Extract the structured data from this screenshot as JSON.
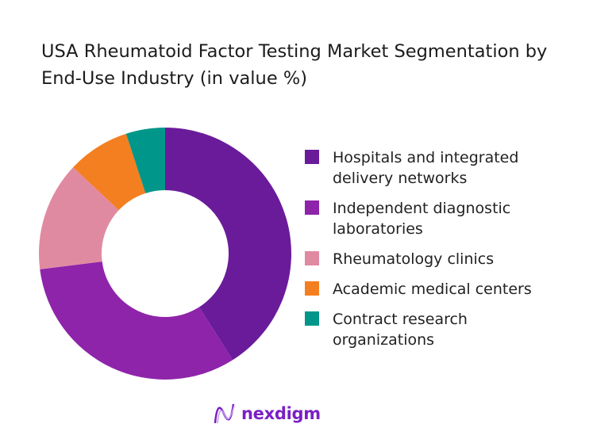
{
  "chart_data": {
    "type": "pie",
    "variant": "donut",
    "title": "USA Rheumatoid Factor Testing Market Segmentation by End-Use Industry (in value %)",
    "categories": [
      "Hospitals and integrated delivery networks",
      "Independent diagnostic laboratories",
      "Rheumatology clinics",
      "Academic medical centers",
      "Contract research organizations"
    ],
    "values": [
      41,
      32,
      14,
      8,
      5
    ],
    "colors": [
      "#6a1b9a",
      "#8e24aa",
      "#e08aa2",
      "#f47f20",
      "#00968a"
    ],
    "legend_position": "right"
  },
  "brand": {
    "name": "nexdigm",
    "color": "#7b1fc4"
  }
}
